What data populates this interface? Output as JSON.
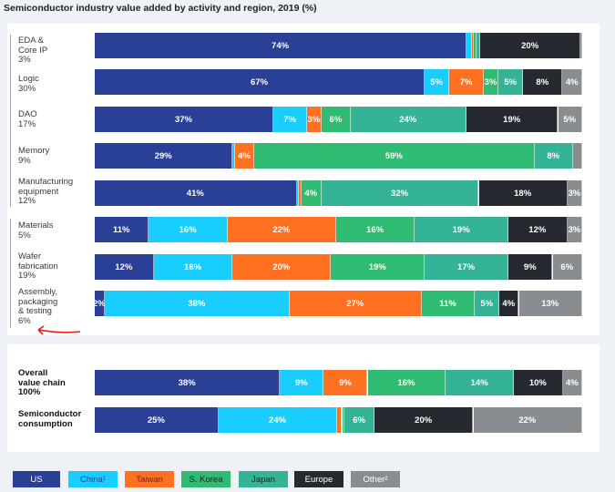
{
  "chart_data": {
    "type": "bar",
    "orientation": "horizontal",
    "stacked": true,
    "title": "Semiconductor industry value added by activity and region, 2019 (%)",
    "series_names": [
      "US",
      "China¹",
      "Taiwan",
      "S. Korea",
      "Japan",
      "Europe",
      "Other²"
    ],
    "colors": {
      "US": "#2a3f96",
      "China": "#19ceff",
      "Taiwan": "#ff7021",
      "SKorea": "#2fbb72",
      "Japan": "#35b396",
      "Europe": "#262a30",
      "Other": "#8a8d90"
    },
    "groups": [
      {
        "name": "activities",
        "rows": [
          {
            "label": "EDA &\nCore IP\n3%",
            "values": [
              74,
              1,
              0.5,
              0.5,
              0.7,
              20,
              0.3
            ],
            "labels": [
              "74%",
              "",
              "",
              "",
              "",
              "20%",
              ""
            ]
          },
          {
            "label": "Logic\n30%",
            "values": [
              67,
              5,
              7,
              3,
              5,
              8,
              4
            ],
            "labels": [
              "67%",
              "5%",
              "7%",
              "3%",
              "5%",
              "8%",
              "4%"
            ]
          },
          {
            "label": "DAO\n17%",
            "values": [
              37,
              7,
              3,
              6,
              24,
              19,
              5
            ],
            "labels": [
              "37%",
              "7%",
              "3%",
              "6%",
              "24%",
              "19%",
              "5%"
            ]
          },
          {
            "label": "Memory\n9%",
            "values": [
              29,
              0.5,
              4,
              59,
              8,
              0,
              2
            ],
            "labels": [
              "29%",
              "",
              "4%",
              "59%",
              "8%",
              "",
              ""
            ]
          },
          {
            "label": "Manufacturing\nequipment\n12%",
            "values": [
              41,
              0.5,
              0.5,
              4,
              32,
              18,
              3
            ],
            "labels": [
              "41%",
              "",
              "",
              "4%",
              "32%",
              "18%",
              "3%"
            ]
          }
        ]
      },
      {
        "name": "materials_and_manufacturing",
        "rows": [
          {
            "label": "Materials\n5%",
            "values": [
              11,
              16,
              22,
              16,
              19,
              12,
              3
            ],
            "labels": [
              "11%",
              "16%",
              "22%",
              "16%",
              "19%",
              "12%",
              "3%"
            ]
          },
          {
            "label": "Wafer\nfabrication\n19%",
            "values": [
              12,
              16,
              20,
              19,
              17,
              9,
              6
            ],
            "labels": [
              "12%",
              "16%",
              "20%",
              "19%",
              "17%",
              "9%",
              "6%"
            ]
          },
          {
            "label": "Assembly,\npackaging\n& testing\n6%",
            "values": [
              2,
              38,
              27,
              11,
              5,
              4,
              13
            ],
            "labels": [
              "2%",
              "38%",
              "27%",
              "11%",
              "5%",
              "4%",
              "13%"
            ]
          }
        ]
      },
      {
        "name": "totals",
        "rows": [
          {
            "label": "Overall\nvalue chain\n100%",
            "values": [
              38,
              9,
              9,
              16,
              14,
              10,
              4
            ],
            "labels": [
              "38%",
              "9%",
              "9%",
              "16%",
              "14%",
              "10%",
              "4%"
            ]
          },
          {
            "label": "Semiconductor\nconsumption",
            "values": [
              25,
              24,
              1,
              0.5,
              6,
              20,
              22
            ],
            "labels": [
              "25%",
              "24%",
              "",
              "",
              "6%",
              "20%",
              "22%"
            ]
          }
        ]
      }
    ],
    "xlim": [
      0,
      100
    ],
    "legend_position": "bottom-left"
  }
}
